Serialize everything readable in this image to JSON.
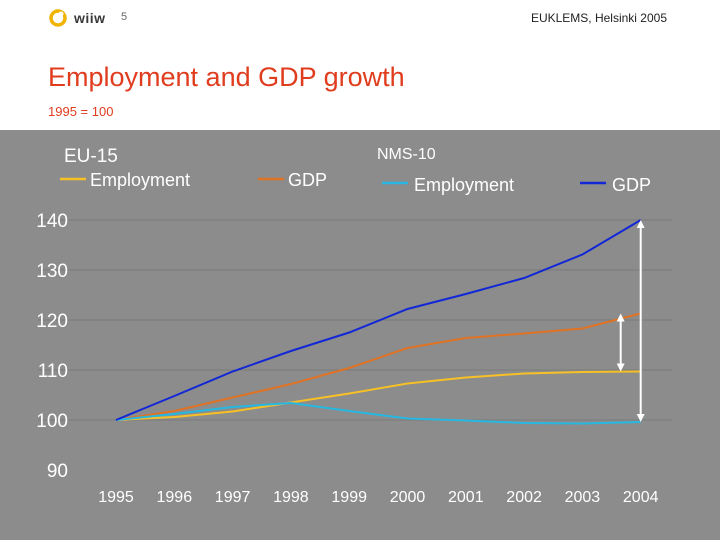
{
  "header": {
    "logo_text": "wiiw",
    "slide_number": "5",
    "event": "EUKLEMS, Helsinki 2005"
  },
  "title": "Employment and GDP growth",
  "subtitle": "1995 = 100",
  "colors": {
    "eu15_employment": "#f6c026",
    "eu15_gdp": "#e07224",
    "nms10_employment": "#27b8e2",
    "nms10_gdp": "#1228d6",
    "accent": "#e03c1e",
    "gridline": "#7a7a7a",
    "arrow": "#ffffff"
  },
  "chart_data": {
    "type": "line",
    "x": [
      "1995",
      "1996",
      "1997",
      "1998",
      "1999",
      "2000",
      "2001",
      "2002",
      "2003",
      "2004"
    ],
    "ylim": [
      90,
      140
    ],
    "yticks": [
      "90",
      "100",
      "110",
      "120",
      "130",
      "140"
    ],
    "grid": true,
    "legend_placement": "top",
    "groups": [
      {
        "name": "EU-15",
        "series": [
          {
            "name": "Employment",
            "color": "#f6c026",
            "values": [
              100,
              100.6,
              101.7,
              103.5,
              105.3,
              107.3,
              108.5,
              109.3,
              109.6,
              109.7
            ]
          },
          {
            "name": "GDP",
            "color": "#e07224",
            "values": [
              100,
              101.8,
              104.5,
              107.2,
              110.4,
              114.4,
              116.4,
              117.3,
              118.3,
              121.3
            ]
          }
        ]
      },
      {
        "name": "NMS-10",
        "series": [
          {
            "name": "Employment",
            "color": "#27b8e2",
            "values": [
              100,
              101.2,
              102.6,
              103.4,
              101.8,
              100.3,
              99.9,
              99.4,
              99.3,
              99.6
            ]
          },
          {
            "name": "GDP",
            "color": "#1228d6",
            "values": [
              100,
              104.8,
              109.7,
              113.8,
              117.5,
              122.2,
              125.2,
              128.4,
              133.1,
              140
            ]
          }
        ]
      }
    ]
  }
}
